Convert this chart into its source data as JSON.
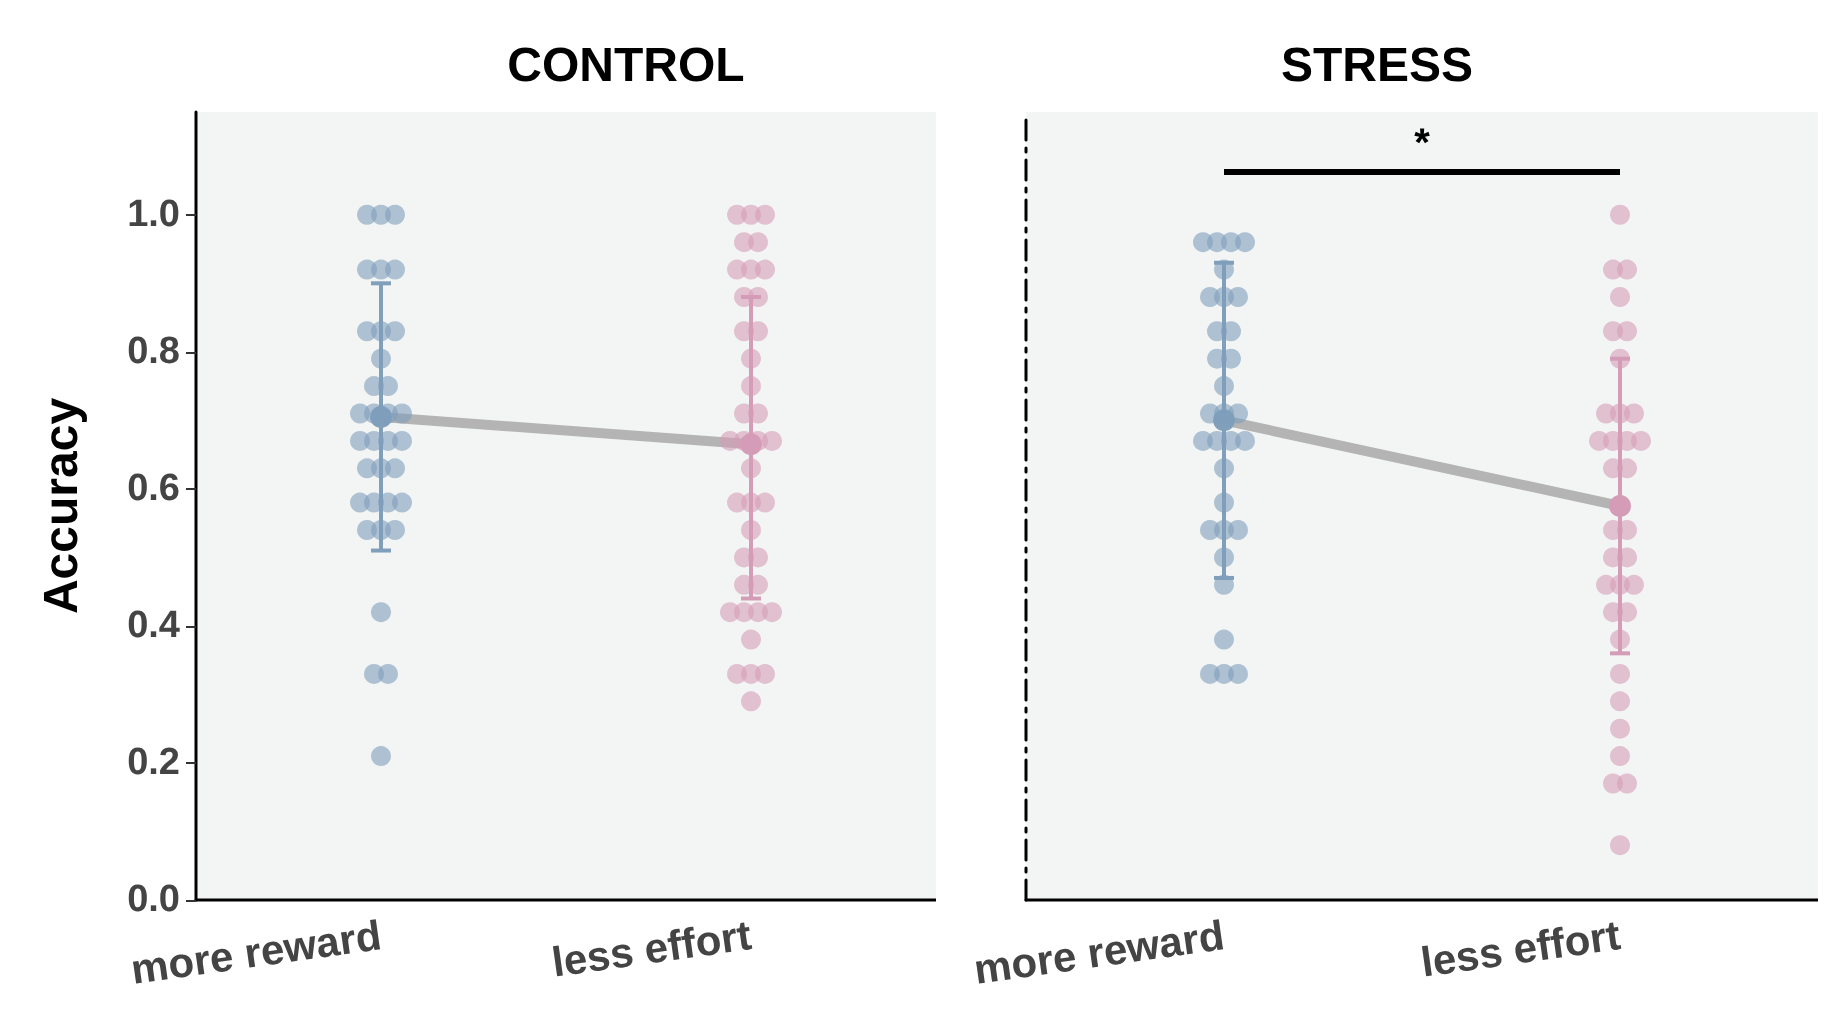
{
  "chart_data": [
    {
      "type": "scatter",
      "title": "CONTROL",
      "ylabel": "Accuracy",
      "categories": [
        "more reward",
        "less effort"
      ],
      "ylim": [
        0,
        1.15
      ],
      "yticks": [
        {
          "value": 0,
          "label": "0.0"
        },
        {
          "value": 0.2,
          "label": "0.2"
        },
        {
          "value": 0.4,
          "label": "0.4"
        },
        {
          "value": 0.6,
          "label": "0.6"
        },
        {
          "value": 0.8,
          "label": "0.8"
        },
        {
          "value": 1,
          "label": "1.0"
        }
      ],
      "grid": false,
      "marker": "circle",
      "series": [
        {
          "color": "#7f9fbb",
          "x": [
            "more reward",
            "more reward",
            "more reward",
            "more reward",
            "more reward",
            "more reward",
            "more reward",
            "more reward",
            "more reward",
            "more reward",
            "more reward",
            "more reward",
            "more reward",
            "more reward",
            "more reward",
            "more reward",
            "more reward",
            "more reward",
            "more reward",
            "more reward",
            "more reward",
            "more reward",
            "more reward",
            "more reward",
            "more reward",
            "more reward",
            "more reward",
            "more reward",
            "more reward",
            "more reward",
            "more reward",
            "more reward",
            "more reward",
            "more reward"
          ],
          "values": [
            1,
            1,
            1,
            0.92,
            0.92,
            0.92,
            0.83,
            0.83,
            0.83,
            0.79,
            0.75,
            0.75,
            0.71,
            0.71,
            0.71,
            0.71,
            0.67,
            0.67,
            0.67,
            0.67,
            0.63,
            0.63,
            0.63,
            0.58,
            0.58,
            0.58,
            0.58,
            0.54,
            0.54,
            0.54,
            0.42,
            0.33,
            0.33,
            0.21
          ]
        },
        {
          "color": "#d59cb8",
          "x": [
            "less effort",
            "less effort",
            "less effort",
            "less effort",
            "less effort",
            "less effort",
            "less effort",
            "less effort",
            "less effort",
            "less effort",
            "less effort",
            "less effort",
            "less effort",
            "less effort",
            "less effort",
            "less effort",
            "less effort",
            "less effort",
            "less effort",
            "less effort",
            "less effort",
            "less effort",
            "less effort",
            "less effort",
            "less effort",
            "less effort",
            "less effort",
            "less effort",
            "less effort",
            "less effort",
            "less effort",
            "less effort",
            "less effort",
            "less effort",
            "less effort",
            "less effort",
            "less effort",
            "less effort"
          ],
          "values": [
            1,
            1,
            1,
            0.96,
            0.96,
            0.92,
            0.92,
            0.92,
            0.88,
            0.88,
            0.83,
            0.83,
            0.79,
            0.75,
            0.71,
            0.71,
            0.67,
            0.67,
            0.67,
            0.67,
            0.63,
            0.58,
            0.58,
            0.58,
            0.54,
            0.5,
            0.5,
            0.46,
            0.46,
            0.42,
            0.42,
            0.42,
            0.42,
            0.38,
            0.33,
            0.33,
            0.33,
            0.29
          ]
        },
        {
          "type": "line",
          "color": "#b4b4b4",
          "x": [
            "more reward",
            "less effort"
          ],
          "values": [
            0.705,
            0.665
          ],
          "colors": [
            "#7f9fbb",
            "#d59cb8"
          ],
          "errors": [
            [
              0.51,
              0.9
            ],
            [
              0.44,
              0.88
            ]
          ]
        }
      ]
    },
    {
      "type": "scatter",
      "title": "STRESS",
      "categories": [
        "more reward",
        "less effort"
      ],
      "ylim": [
        0,
        1.15
      ],
      "tick_labels": "x",
      "grid": false,
      "marker": "circle",
      "annotations": [
        "*"
      ],
      "series": [
        {
          "color": "#7f9fbb",
          "x": [
            "more reward",
            "more reward",
            "more reward",
            "more reward",
            "more reward",
            "more reward",
            "more reward",
            "more reward",
            "more reward",
            "more reward",
            "more reward",
            "more reward",
            "more reward",
            "more reward",
            "more reward",
            "more reward",
            "more reward",
            "more reward",
            "more reward",
            "more reward",
            "more reward",
            "more reward",
            "more reward",
            "more reward",
            "more reward",
            "more reward",
            "more reward",
            "more reward",
            "more reward",
            "more reward",
            "more reward"
          ],
          "values": [
            0.96,
            0.96,
            0.96,
            0.96,
            0.92,
            0.88,
            0.88,
            0.88,
            0.83,
            0.83,
            0.79,
            0.79,
            0.75,
            0.71,
            0.71,
            0.71,
            0.67,
            0.67,
            0.67,
            0.67,
            0.63,
            0.58,
            0.54,
            0.54,
            0.54,
            0.5,
            0.46,
            0.38,
            0.33,
            0.33,
            0.33
          ]
        },
        {
          "color": "#d59cb8",
          "x": [
            "less effort",
            "less effort",
            "less effort",
            "less effort",
            "less effort",
            "less effort",
            "less effort",
            "less effort",
            "less effort",
            "less effort",
            "less effort",
            "less effort",
            "less effort",
            "less effort",
            "less effort",
            "less effort",
            "less effort",
            "less effort",
            "less effort",
            "less effort",
            "less effort",
            "less effort",
            "less effort",
            "less effort",
            "less effort",
            "less effort",
            "less effort",
            "less effort",
            "less effort",
            "less effort",
            "less effort",
            "less effort",
            "less effort"
          ],
          "values": [
            1,
            0.92,
            0.92,
            0.88,
            0.83,
            0.83,
            0.79,
            0.71,
            0.71,
            0.71,
            0.67,
            0.67,
            0.67,
            0.67,
            0.63,
            0.63,
            0.54,
            0.54,
            0.5,
            0.5,
            0.46,
            0.46,
            0.46,
            0.42,
            0.42,
            0.38,
            0.33,
            0.29,
            0.25,
            0.21,
            0.17,
            0.17,
            0.08
          ]
        },
        {
          "type": "line",
          "color": "#b4b4b4",
          "x": [
            "more reward",
            "less effort"
          ],
          "values": [
            0.7,
            0.575
          ],
          "colors": [
            "#7f9fbb",
            "#d59cb8"
          ],
          "errors": [
            [
              0.47,
              0.93
            ],
            [
              0.36,
              0.79
            ]
          ]
        }
      ]
    }
  ]
}
